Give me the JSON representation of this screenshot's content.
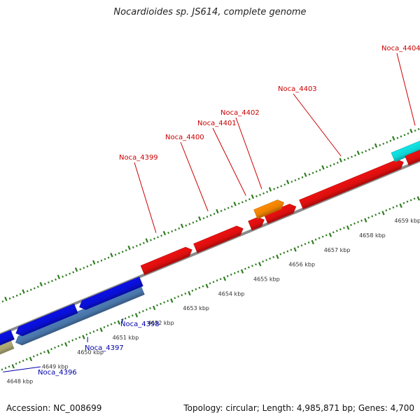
{
  "title": "Nocardioides sp. JS614, complete genome",
  "footer": {
    "accession": "Accession: NC_008699",
    "summary": "Topology: circular; Length: 4,985,871 bp; Genes: 4,700"
  },
  "colors": {
    "backbone": "#8a8a8a",
    "tick": "#2e7d1f",
    "forward_label": "#cc0000",
    "reverse_label": "#0000aa"
  },
  "scale_ticks": [
    {
      "kbp": 4648,
      "label": "4648 kbp"
    },
    {
      "kbp": 4649,
      "label": "4649 kbp"
    },
    {
      "kbp": 4650,
      "label": "4650 kbp"
    },
    {
      "kbp": 4651,
      "label": "4651 kbp"
    },
    {
      "kbp": 4652,
      "label": "4652 kbp"
    },
    {
      "kbp": 4653,
      "label": "4653 kbp"
    },
    {
      "kbp": 4654,
      "label": "4654 kbp"
    },
    {
      "kbp": 4655,
      "label": "4655 kbp"
    },
    {
      "kbp": 4656,
      "label": "4656 kbp"
    },
    {
      "kbp": 4657,
      "label": "4657 kbp"
    },
    {
      "kbp": 4658,
      "label": "4658 kbp"
    },
    {
      "kbp": 4659,
      "label": "4659 kbp"
    }
  ],
  "genes": [
    {
      "id": "Noca_4396",
      "strand": "reverse",
      "track": "outer",
      "start_kbp": 4647.2,
      "end_kbp": 4648.2,
      "color": "#b8b27a",
      "label": "Noca_4396"
    },
    {
      "id": "Noca_4397",
      "strand": "reverse",
      "track": "outer",
      "start_kbp": 4648.3,
      "end_kbp": 4651.9,
      "color": "#4f7fb8",
      "label": "Noca_4397"
    },
    {
      "id": "Noca_4398",
      "strand": "reverse",
      "track": "inner",
      "start_kbp": 4647.0,
      "end_kbp": 4648.3,
      "color": "#0a10e6",
      "label": ""
    },
    {
      "id": "Noca_4398b",
      "strand": "reverse",
      "track": "inner",
      "start_kbp": 4648.4,
      "end_kbp": 4650.1,
      "color": "#0a10e6",
      "label": ""
    },
    {
      "id": "Noca_4398c",
      "strand": "reverse",
      "track": "inner",
      "start_kbp": 4650.2,
      "end_kbp": 4651.95,
      "color": "#0a10e6",
      "label": "Noca_4398"
    },
    {
      "id": "Noca_4399",
      "strand": "forward",
      "track": "inner",
      "start_kbp": 4652.1,
      "end_kbp": 4653.5,
      "color": "#ee1010",
      "label": "Noca_4399"
    },
    {
      "id": "Noca_4400",
      "strand": "forward",
      "track": "inner",
      "start_kbp": 4653.6,
      "end_kbp": 4654.95,
      "color": "#ee1010",
      "label": "Noca_4400"
    },
    {
      "id": "Noca_4401",
      "strand": "forward",
      "track": "inner",
      "start_kbp": 4655.15,
      "end_kbp": 4655.55,
      "color": "#ee1010",
      "label": "Noca_4401"
    },
    {
      "id": "Noca_4401b",
      "strand": "forward",
      "track": "inner",
      "start_kbp": 4655.6,
      "end_kbp": 4656.45,
      "color": "#ee1010",
      "label": ""
    },
    {
      "id": "Noca_4402",
      "strand": "forward",
      "track": "outer",
      "start_kbp": 4655.4,
      "end_kbp": 4656.2,
      "color": "#ff8c00",
      "label": "Noca_4402"
    },
    {
      "id": "Noca_4403",
      "strand": "forward",
      "track": "inner",
      "start_kbp": 4656.6,
      "end_kbp": 4659.5,
      "color": "#ee1010",
      "label": "Noca_4403"
    },
    {
      "id": "Noca_4404",
      "strand": "forward",
      "track": "outer",
      "start_kbp": 4659.3,
      "end_kbp": 4661.0,
      "color": "#11e6e6",
      "label": "Noca_4404"
    },
    {
      "id": "Noca_4404b",
      "strand": "forward",
      "track": "inner",
      "start_kbp": 4659.6,
      "end_kbp": 4661.0,
      "color": "#ee1010",
      "label": ""
    }
  ]
}
